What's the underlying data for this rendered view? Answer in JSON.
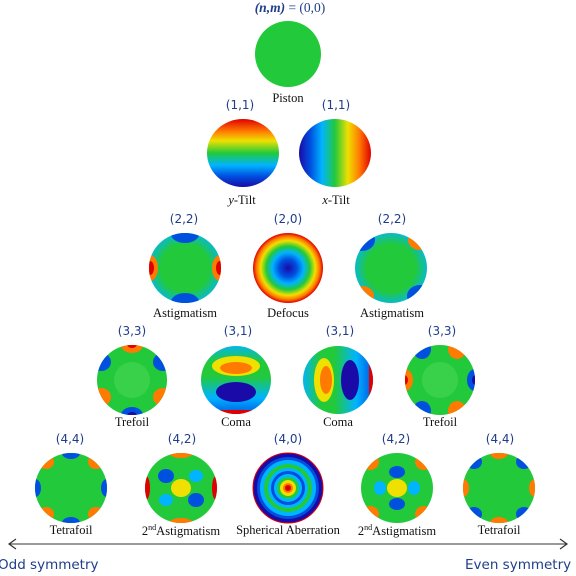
{
  "title_prefix": "(n,m)",
  "title_rest": " = (0,0)",
  "rows": [
    {
      "terms": [
        {
          "index": "",
          "label": "Piston"
        }
      ]
    },
    {
      "terms": [
        {
          "index": "(1,1)",
          "label_var": "y",
          "label_suffix": "-Tilt"
        },
        {
          "index": "(1,1)",
          "label_var": "x",
          "label_suffix": "-Tilt"
        }
      ]
    },
    {
      "terms": [
        {
          "index": "(2,2)",
          "label": "Astigmatism"
        },
        {
          "index": "(2,0)",
          "label": "Defocus"
        },
        {
          "index": "(2,2)",
          "label": "Astigmatism"
        }
      ]
    },
    {
      "terms": [
        {
          "index": "(3,3)",
          "label": "Trefoil"
        },
        {
          "index": "(3,1)",
          "label": "Coma"
        },
        {
          "index": "(3,1)",
          "label": "Coma"
        },
        {
          "index": "(3,3)",
          "label": "Trefoil"
        }
      ]
    },
    {
      "terms": [
        {
          "index": "(4,4)",
          "label": "Tetrafoil"
        },
        {
          "index": "(4,2)",
          "label_sup_prefix": "2",
          "label_sup": "nd",
          "label_suffix": "Astigmatism"
        },
        {
          "index": "(4,0)",
          "label": "Spherical Aberration"
        },
        {
          "index": "(4,2)",
          "label_sup_prefix": "2",
          "label_sup": "nd",
          "label_suffix": "Astigmatism"
        },
        {
          "index": "(4,4)",
          "label": "Tetrafoil"
        }
      ]
    }
  ],
  "footer": {
    "left": "Odd symmetry",
    "right": "Even symmetry"
  },
  "colors": {
    "index_text": "#1f3d8a",
    "arrow": "#333333",
    "colormap": [
      "#1a0aa8",
      "#0050e0",
      "#00b4ff",
      "#22c93a",
      "#f0e000",
      "#ff7a00",
      "#e00000"
    ]
  }
}
